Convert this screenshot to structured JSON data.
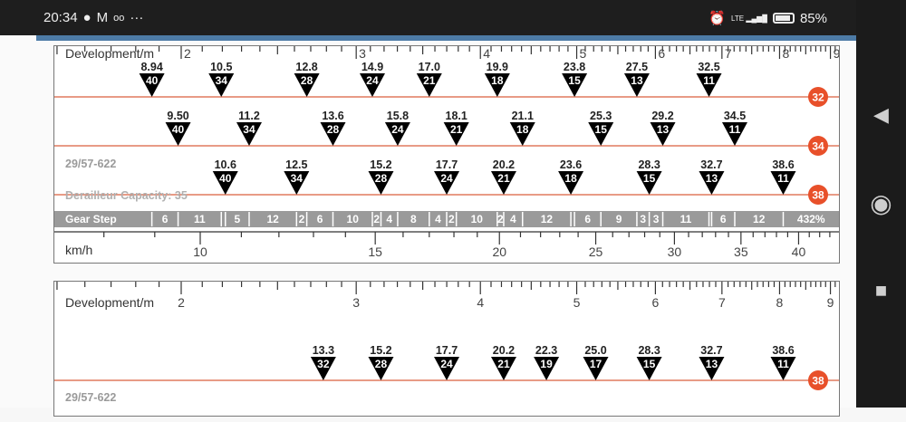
{
  "status_bar": {
    "time": "20:34",
    "left_icons": [
      "chat-bubble-icon",
      "gmail-icon",
      "incognito-icon",
      "more-dots-icon"
    ],
    "more": "···",
    "network": "LTE",
    "battery": "85%"
  },
  "nav_bar": {
    "back": "◀",
    "home": "◉",
    "recents": "■"
  },
  "colors": {
    "accent": "#4d7ba6",
    "chainring_line": "#e07a5f",
    "chainring_badge": "#e8502a",
    "marker": "#000000",
    "gear_step_bar": "#9a9a9a"
  },
  "chart_data": {
    "type": "gear-chart",
    "scale": "log",
    "development_axis": {
      "label": "Development/m",
      "ticks": [
        "2",
        "3",
        "4",
        "5",
        "6",
        "7",
        "8",
        "9"
      ],
      "range": [
        1.5,
        9.2
      ]
    },
    "speed_axis": {
      "label": "km/h",
      "ticks": [
        "10",
        "15",
        "20",
        "25",
        "30",
        "35",
        "40"
      ]
    },
    "panels": [
      {
        "info": "29/57-622",
        "capacity": "Derailleur Capacity: 35",
        "rows": [
          {
            "chainring": "32",
            "markers": [
              {
                "speed": "8.94",
                "cog": "40"
              },
              {
                "speed": "10.5",
                "cog": "34"
              },
              {
                "speed": "12.8",
                "cog": "28"
              },
              {
                "speed": "14.9",
                "cog": "24"
              },
              {
                "speed": "17.0",
                "cog": "21"
              },
              {
                "speed": "19.9",
                "cog": "18"
              },
              {
                "speed": "23.8",
                "cog": "15"
              },
              {
                "speed": "27.5",
                "cog": "13"
              },
              {
                "speed": "32.5",
                "cog": "11"
              }
            ]
          },
          {
            "chainring": "34",
            "markers": [
              {
                "speed": "9.50",
                "cog": "40"
              },
              {
                "speed": "11.2",
                "cog": "34"
              },
              {
                "speed": "13.6",
                "cog": "28"
              },
              {
                "speed": "15.8",
                "cog": "24"
              },
              {
                "speed": "18.1",
                "cog": "21"
              },
              {
                "speed": "21.1",
                "cog": "18"
              },
              {
                "speed": "25.3",
                "cog": "15"
              },
              {
                "speed": "29.2",
                "cog": "13"
              },
              {
                "speed": "34.5",
                "cog": "11"
              }
            ]
          },
          {
            "chainring": "38",
            "markers": [
              {
                "speed": "10.6",
                "cog": "40"
              },
              {
                "speed": "12.5",
                "cog": "34"
              },
              {
                "speed": "15.2",
                "cog": "28"
              },
              {
                "speed": "17.7",
                "cog": "24"
              },
              {
                "speed": "20.2",
                "cog": "21"
              },
              {
                "speed": "23.6",
                "cog": "18"
              },
              {
                "speed": "28.3",
                "cog": "15"
              },
              {
                "speed": "32.7",
                "cog": "13"
              },
              {
                "speed": "38.6",
                "cog": "11"
              }
            ]
          }
        ],
        "gear_step": {
          "label": "Gear Step",
          "steps": [
            "6",
            "11",
            "",
            "5",
            "12",
            "2",
            "6",
            "10",
            "2",
            "4",
            "8",
            "4",
            "2",
            "10",
            "2",
            "4",
            "12",
            "",
            "6",
            "9",
            "3",
            "3",
            "11",
            "",
            "6",
            "12"
          ],
          "total": "432%"
        }
      },
      {
        "info": "29/57-622",
        "rows": [
          {
            "chainring": "38",
            "markers": [
              {
                "speed": "13.3",
                "cog": "32"
              },
              {
                "speed": "15.2",
                "cog": "28"
              },
              {
                "speed": "17.7",
                "cog": "24"
              },
              {
                "speed": "20.2",
                "cog": "21"
              },
              {
                "speed": "22.3",
                "cog": "19"
              },
              {
                "speed": "25.0",
                "cog": "17"
              },
              {
                "speed": "28.3",
                "cog": "15"
              },
              {
                "speed": "32.7",
                "cog": "13"
              },
              {
                "speed": "38.6",
                "cog": "11"
              }
            ]
          }
        ]
      }
    ]
  }
}
